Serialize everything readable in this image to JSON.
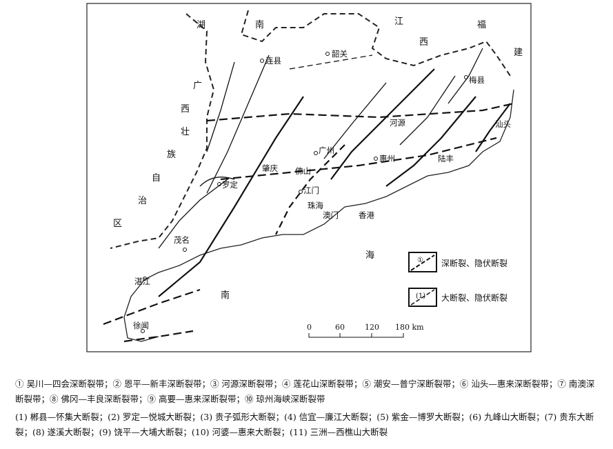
{
  "regions": {
    "hunan": [
      "湖",
      "南"
    ],
    "jiangxi": [
      "江",
      "西"
    ],
    "fujian": [
      "福",
      "建"
    ],
    "guangxi": [
      "广",
      "西",
      "壮",
      "族",
      "自",
      "治",
      "区"
    ],
    "sea": [
      "南",
      "海"
    ]
  },
  "cities": [
    "连县",
    "韶关",
    "梅县",
    "汕头",
    "河源",
    "广州",
    "惠州",
    "陆丰",
    "肇庆",
    "佛山",
    "罗定",
    "江门",
    "珠海",
    "澳门",
    "香港",
    "茂名",
    "湛江",
    "徐闻"
  ],
  "legend": {
    "deep": {
      "symbol": "①",
      "label": "深断裂、隐伏断裂"
    },
    "major": {
      "symbol": "(1)",
      "label": "大断裂、隐伏断裂"
    }
  },
  "scale": {
    "ticks": [
      "0",
      "60",
      "120",
      "180 km"
    ]
  },
  "caption": {
    "deep_faults": "① 吴川—四会深断裂带；② 恩平—新丰深断裂带；③ 河源深断裂带；④ 莲花山深断裂带；⑤ 潮安—普宁深断裂带；⑥ 汕头—惠来深断裂带；⑦ 南澳深断裂带；⑧ 佛冈—丰良深断裂带；⑨ 高要—惠来深断裂带；⑩ 琼州海峡深断裂带",
    "major_faults": "(1) 郴县—怀集大断裂；(2) 罗定—悦城大断裂；(3) 贵子弧形大断裂；(4) 信宜—廉江大断裂；(5) 紫金—博罗大断裂；(6) 九峰山大断裂；(7) 贵东大断裂；(8) 遂溪大断裂；(9) 饶平—大埔大断裂；(10) 河婆—惠来大断裂；(11) 三洲—西樵山大断裂"
  }
}
